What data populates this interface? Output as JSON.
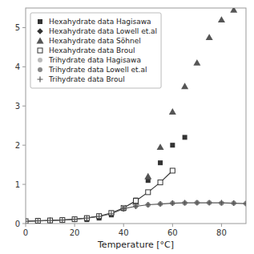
{
  "chart_data": {
    "type": "line",
    "title": "",
    "xlabel": "Temperature [°C]",
    "ylabel": "",
    "xlim": [
      0,
      90
    ],
    "ylim": [
      0,
      5.5
    ],
    "xticks": [
      0,
      20,
      40,
      60,
      80
    ],
    "yticks": [
      0,
      1,
      2,
      3,
      4,
      5
    ],
    "grid": false,
    "legend": "upper left",
    "series": [
      {
        "name": "Hexahydrate data Hagisawa",
        "type": "scatter",
        "marker": "square",
        "color": "#333333",
        "x": [
          25,
          30,
          35,
          40,
          45,
          50,
          55,
          60,
          65
        ],
        "values": [
          0.1,
          0.14,
          0.22,
          0.38,
          0.6,
          1.1,
          1.55,
          2.0,
          2.2
        ]
      },
      {
        "name": "Hexahydrate data Lowell et.al",
        "type": "scatter",
        "marker": "diamond",
        "color": "#333333",
        "x": [
          5,
          10,
          15,
          20,
          25,
          30,
          35,
          40,
          45
        ],
        "values": [
          0.07,
          0.08,
          0.09,
          0.11,
          0.13,
          0.17,
          0.24,
          0.38,
          0.58
        ]
      },
      {
        "name": "Hexahydrate data Söhnel",
        "type": "scatter",
        "marker": "triangle",
        "color": "#555555",
        "x": [
          45,
          50,
          55,
          60,
          65,
          70,
          75,
          80,
          85
        ],
        "values": [
          0.55,
          1.2,
          1.95,
          2.85,
          3.5,
          4.1,
          4.75,
          5.2,
          5.45
        ]
      },
      {
        "name": "Hexahydrate data Broul",
        "type": "line",
        "marker": "open-square",
        "color": "#333333",
        "x": [
          0,
          5,
          10,
          15,
          20,
          25,
          30,
          35,
          40,
          45,
          50,
          55,
          60
        ],
        "values": [
          0.06,
          0.07,
          0.08,
          0.09,
          0.11,
          0.14,
          0.19,
          0.27,
          0.4,
          0.58,
          0.8,
          1.05,
          1.35
        ]
      },
      {
        "name": "Trihydrate data Hagisawa",
        "type": "scatter",
        "marker": "circle",
        "color": "#bbbbbb",
        "x": [
          40,
          45,
          50,
          55,
          60,
          65,
          70,
          75,
          80,
          85,
          90
        ],
        "values": [
          0.4,
          0.44,
          0.47,
          0.5,
          0.52,
          0.53,
          0.53,
          0.53,
          0.52,
          0.52,
          0.51
        ]
      },
      {
        "name": "Trihydrate data Lowell et.al",
        "type": "scatter",
        "marker": "circle",
        "color": "#888888",
        "x": [
          40,
          45,
          50,
          55,
          60,
          65,
          70,
          75,
          80,
          85,
          90
        ],
        "values": [
          0.41,
          0.45,
          0.48,
          0.5,
          0.52,
          0.52,
          0.53,
          0.53,
          0.52,
          0.52,
          0.51
        ]
      },
      {
        "name": "Trihydrate data Broul",
        "type": "line",
        "marker": "plus",
        "color": "#555555",
        "x": [
          0,
          5,
          10,
          15,
          20,
          25,
          30,
          35,
          40,
          45,
          50,
          55,
          60,
          65,
          70,
          75,
          80,
          85,
          90
        ],
        "values": [
          0.06,
          0.07,
          0.08,
          0.09,
          0.11,
          0.14,
          0.18,
          0.25,
          0.38,
          0.44,
          0.48,
          0.5,
          0.52,
          0.53,
          0.53,
          0.53,
          0.53,
          0.52,
          0.51
        ]
      }
    ]
  }
}
